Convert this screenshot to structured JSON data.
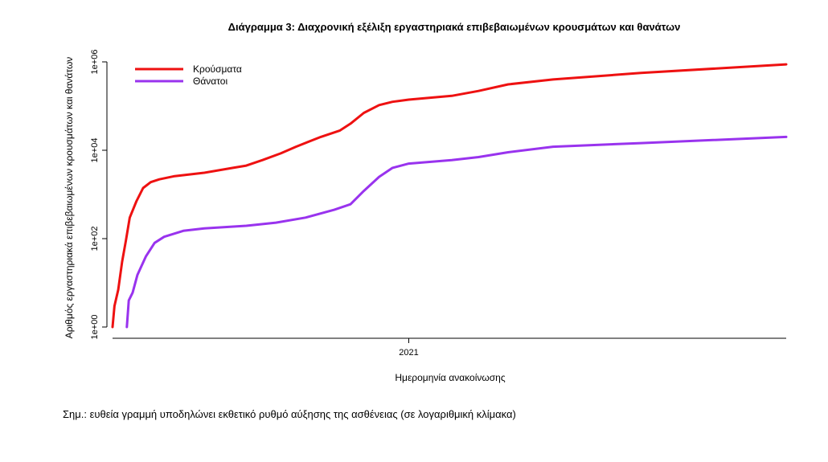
{
  "chart_data": {
    "type": "line",
    "title": "Διάγραμμα 3: Διαχρονική εξέλιξη εργαστηριακά επιβεβαιωμένων κρουσμάτων και θανάτων",
    "xlabel": "Ημερομηνία ανακοίνωσης",
    "ylabel": "Αριθμός εργαστηριακά επιβεβαιωμένων κρουσμάτων και θανάτων",
    "y_scale": "log10",
    "ylim": [
      1,
      1000000
    ],
    "yticks": [
      {
        "value": 1,
        "label": "1e+00"
      },
      {
        "value": 100,
        "label": "1e+02"
      },
      {
        "value": 10000,
        "label": "1e+04"
      },
      {
        "value": 1000000,
        "label": "1e+06"
      }
    ],
    "xlim": [
      "2020-02-26",
      "2022-01-31"
    ],
    "xticks": [
      {
        "value": "2021-01-01",
        "label": "2021"
      }
    ],
    "grid": false,
    "legend_position": "top-left",
    "series": [
      {
        "name": "Κρούσματα",
        "color": "#ee1111",
        "points": [
          [
            "2020-02-26",
            1
          ],
          [
            "2020-02-28",
            3
          ],
          [
            "2020-03-03",
            7
          ],
          [
            "2020-03-07",
            30
          ],
          [
            "2020-03-11",
            90
          ],
          [
            "2020-03-15",
            300
          ],
          [
            "2020-03-22",
            700
          ],
          [
            "2020-03-29",
            1400
          ],
          [
            "2020-04-06",
            1900
          ],
          [
            "2020-04-15",
            2200
          ],
          [
            "2020-05-01",
            2600
          ],
          [
            "2020-06-01",
            3100
          ],
          [
            "2020-07-01",
            4000
          ],
          [
            "2020-07-15",
            4500
          ],
          [
            "2020-08-01",
            6000
          ],
          [
            "2020-08-20",
            8500
          ],
          [
            "2020-09-05",
            12000
          ],
          [
            "2020-10-01",
            20000
          ],
          [
            "2020-10-21",
            28000
          ],
          [
            "2020-11-01",
            40000
          ],
          [
            "2020-11-15",
            70000
          ],
          [
            "2020-12-01",
            105000
          ],
          [
            "2020-12-15",
            125000
          ],
          [
            "2021-01-01",
            140000
          ],
          [
            "2021-02-15",
            170000
          ],
          [
            "2021-03-15",
            220000
          ],
          [
            "2021-04-15",
            310000
          ],
          [
            "2021-06-01",
            400000
          ],
          [
            "2021-09-01",
            560000
          ],
          [
            "2022-01-31",
            880000
          ]
        ]
      },
      {
        "name": "Θάνατοι",
        "color": "#9933ee",
        "points": [
          [
            "2020-03-12",
            1
          ],
          [
            "2020-03-14",
            4
          ],
          [
            "2020-03-18",
            6
          ],
          [
            "2020-03-23",
            15
          ],
          [
            "2020-04-01",
            40
          ],
          [
            "2020-04-10",
            80
          ],
          [
            "2020-04-20",
            110
          ],
          [
            "2020-05-10",
            150
          ],
          [
            "2020-06-01",
            170
          ],
          [
            "2020-07-15",
            195
          ],
          [
            "2020-08-15",
            230
          ],
          [
            "2020-09-15",
            300
          ],
          [
            "2020-10-15",
            450
          ],
          [
            "2020-11-01",
            600
          ],
          [
            "2020-11-15",
            1200
          ],
          [
            "2020-12-01",
            2500
          ],
          [
            "2020-12-15",
            4000
          ],
          [
            "2021-01-01",
            5000
          ],
          [
            "2021-02-15",
            6000
          ],
          [
            "2021-03-15",
            7000
          ],
          [
            "2021-04-15",
            9000
          ],
          [
            "2021-06-01",
            12000
          ],
          [
            "2021-09-01",
            14500
          ],
          [
            "2022-01-31",
            20000
          ]
        ]
      }
    ]
  },
  "note": "Σημ.: ευθεία γραμμή υποδηλώνει εκθετικό ρυθμό αύξησης της ασθένειας (σε λογαριθμική κλίμακα)"
}
